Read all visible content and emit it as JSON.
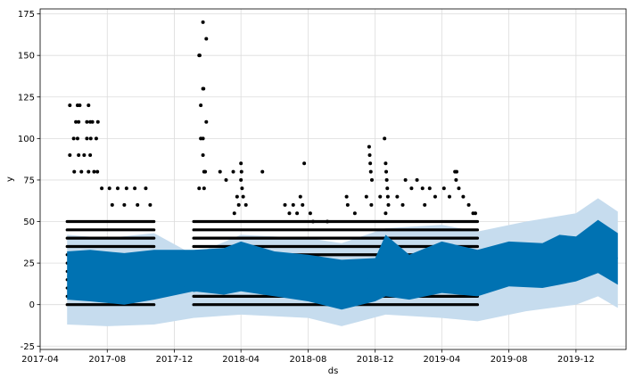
{
  "chart_data": {
    "type": "scatter",
    "title": "",
    "xlabel": "ds",
    "ylabel": "y",
    "grid": true,
    "legend": "none",
    "x_domain": [
      "2017-04-01",
      "2020-03-01"
    ],
    "ylim": [
      -27,
      178
    ],
    "x_ticks": [
      {
        "date": "2017-04-01",
        "label": "2017-04"
      },
      {
        "date": "2017-08-01",
        "label": "2017-08"
      },
      {
        "date": "2017-12-01",
        "label": "2017-12"
      },
      {
        "date": "2018-04-01",
        "label": "2018-04"
      },
      {
        "date": "2018-08-01",
        "label": "2018-08"
      },
      {
        "date": "2018-12-01",
        "label": "2018-12"
      },
      {
        "date": "2019-04-01",
        "label": "2019-04"
      },
      {
        "date": "2019-08-01",
        "label": "2019-08"
      },
      {
        "date": "2019-12-01",
        "label": "2019-12"
      }
    ],
    "y_ticks": [
      -25,
      0,
      25,
      50,
      75,
      100,
      125,
      150,
      175
    ],
    "observed_ranges": [
      {
        "start": "2017-05-20",
        "end": "2017-10-25"
      },
      {
        "start": "2018-01-05",
        "end": "2019-06-05"
      }
    ],
    "observed_levels": [
      0,
      5,
      10,
      15,
      20,
      25,
      30,
      35,
      40,
      45,
      50
    ],
    "sparse_points": [
      {
        "x": "2017-05-25",
        "y": 120
      },
      {
        "x": "2017-06-08",
        "y": 120
      },
      {
        "x": "2017-06-12",
        "y": 120
      },
      {
        "x": "2017-06-28",
        "y": 120
      },
      {
        "x": "2017-06-05",
        "y": 110
      },
      {
        "x": "2017-06-10",
        "y": 110
      },
      {
        "x": "2017-06-25",
        "y": 110
      },
      {
        "x": "2017-07-01",
        "y": 110
      },
      {
        "x": "2017-07-05",
        "y": 110
      },
      {
        "x": "2017-07-15",
        "y": 110
      },
      {
        "x": "2017-06-01",
        "y": 100
      },
      {
        "x": "2017-06-08",
        "y": 100
      },
      {
        "x": "2017-06-25",
        "y": 100
      },
      {
        "x": "2017-07-02",
        "y": 100
      },
      {
        "x": "2017-07-12",
        "y": 100
      },
      {
        "x": "2017-05-25",
        "y": 90
      },
      {
        "x": "2017-06-10",
        "y": 90
      },
      {
        "x": "2017-06-20",
        "y": 90
      },
      {
        "x": "2017-07-01",
        "y": 90
      },
      {
        "x": "2017-06-02",
        "y": 80
      },
      {
        "x": "2017-06-15",
        "y": 80
      },
      {
        "x": "2017-06-28",
        "y": 80
      },
      {
        "x": "2017-07-08",
        "y": 80
      },
      {
        "x": "2017-07-14",
        "y": 80
      },
      {
        "x": "2017-07-22",
        "y": 70
      },
      {
        "x": "2017-08-05",
        "y": 70
      },
      {
        "x": "2017-08-20",
        "y": 70
      },
      {
        "x": "2017-09-05",
        "y": 70
      },
      {
        "x": "2017-09-20",
        "y": 70
      },
      {
        "x": "2017-10-10",
        "y": 70
      },
      {
        "x": "2017-08-10",
        "y": 60
      },
      {
        "x": "2017-09-01",
        "y": 60
      },
      {
        "x": "2017-09-25",
        "y": 60
      },
      {
        "x": "2017-10-18",
        "y": 60
      },
      {
        "x": "2018-01-22",
        "y": 170
      },
      {
        "x": "2018-01-28",
        "y": 160
      },
      {
        "x": "2018-01-15",
        "y": 150
      },
      {
        "x": "2018-01-16",
        "y": 150
      },
      {
        "x": "2018-01-22",
        "y": 130
      },
      {
        "x": "2018-01-23",
        "y": 130
      },
      {
        "x": "2018-01-18",
        "y": 120
      },
      {
        "x": "2018-01-28",
        "y": 110
      },
      {
        "x": "2018-01-18",
        "y": 100
      },
      {
        "x": "2018-01-22",
        "y": 100
      },
      {
        "x": "2018-01-22",
        "y": 90
      },
      {
        "x": "2018-01-24",
        "y": 80
      },
      {
        "x": "2018-01-26",
        "y": 80
      },
      {
        "x": "2018-01-15",
        "y": 70
      },
      {
        "x": "2018-01-24",
        "y": 70
      },
      {
        "x": "2018-02-22",
        "y": 80
      },
      {
        "x": "2018-03-05",
        "y": 75
      },
      {
        "x": "2018-03-18",
        "y": 80
      },
      {
        "x": "2018-04-01",
        "y": 85
      },
      {
        "x": "2018-04-02",
        "y": 80
      },
      {
        "x": "2018-04-01",
        "y": 75
      },
      {
        "x": "2018-04-03",
        "y": 70
      },
      {
        "x": "2018-03-25",
        "y": 65
      },
      {
        "x": "2018-04-05",
        "y": 65
      },
      {
        "x": "2018-03-28",
        "y": 60
      },
      {
        "x": "2018-04-10",
        "y": 60
      },
      {
        "x": "2018-03-20",
        "y": 55
      },
      {
        "x": "2018-05-10",
        "y": 80
      },
      {
        "x": "2018-07-25",
        "y": 85
      },
      {
        "x": "2018-07-18",
        "y": 65
      },
      {
        "x": "2018-07-22",
        "y": 60
      },
      {
        "x": "2018-07-05",
        "y": 60
      },
      {
        "x": "2018-06-20",
        "y": 60
      },
      {
        "x": "2018-06-28",
        "y": 55
      },
      {
        "x": "2018-07-12",
        "y": 55
      },
      {
        "x": "2018-08-05",
        "y": 55
      },
      {
        "x": "2018-08-10",
        "y": 50
      },
      {
        "x": "2018-09-05",
        "y": 50
      },
      {
        "x": "2018-10-10",
        "y": 65
      },
      {
        "x": "2018-10-12",
        "y": 60
      },
      {
        "x": "2018-10-25",
        "y": 55
      },
      {
        "x": "2018-11-20",
        "y": 95
      },
      {
        "x": "2018-11-21",
        "y": 90
      },
      {
        "x": "2018-11-22",
        "y": 85
      },
      {
        "x": "2018-11-23",
        "y": 80
      },
      {
        "x": "2018-11-25",
        "y": 75
      },
      {
        "x": "2018-11-15",
        "y": 65
      },
      {
        "x": "2018-11-24",
        "y": 60
      },
      {
        "x": "2018-12-10",
        "y": 65
      },
      {
        "x": "2018-12-18",
        "y": 100
      },
      {
        "x": "2018-12-20",
        "y": 85
      },
      {
        "x": "2018-12-21",
        "y": 80
      },
      {
        "x": "2018-12-22",
        "y": 75
      },
      {
        "x": "2018-12-23",
        "y": 70
      },
      {
        "x": "2018-12-24",
        "y": 65
      },
      {
        "x": "2018-12-25",
        "y": 60
      },
      {
        "x": "2018-12-20",
        "y": 55
      },
      {
        "x": "2019-01-10",
        "y": 65
      },
      {
        "x": "2019-01-25",
        "y": 75
      },
      {
        "x": "2019-02-05",
        "y": 70
      },
      {
        "x": "2019-02-15",
        "y": 75
      },
      {
        "x": "2019-02-25",
        "y": 70
      },
      {
        "x": "2019-03-10",
        "y": 70
      },
      {
        "x": "2019-03-20",
        "y": 65
      },
      {
        "x": "2019-04-05",
        "y": 70
      },
      {
        "x": "2019-04-15",
        "y": 65
      },
      {
        "x": "2019-04-25",
        "y": 80
      },
      {
        "x": "2019-04-28",
        "y": 80
      },
      {
        "x": "2019-04-27",
        "y": 75
      },
      {
        "x": "2019-05-02",
        "y": 70
      },
      {
        "x": "2019-05-10",
        "y": 65
      },
      {
        "x": "2019-05-20",
        "y": 60
      },
      {
        "x": "2019-05-28",
        "y": 55
      },
      {
        "x": "2019-06-01",
        "y": 55
      },
      {
        "x": "2019-01-20",
        "y": 60
      },
      {
        "x": "2019-03-01",
        "y": 60
      }
    ],
    "forecast_series": {
      "name": "",
      "trend": [
        {
          "x": "2017-05-20",
          "y": 17
        },
        {
          "x": "2017-10-25",
          "y": 18
        },
        {
          "x": "2018-01-05",
          "y": 8
        },
        {
          "x": "2018-07-01",
          "y": 16
        },
        {
          "x": "2018-10-15",
          "y": 13
        },
        {
          "x": "2019-01-01",
          "y": 20
        },
        {
          "x": "2019-06-05",
          "y": 22
        },
        {
          "x": "2019-10-01",
          "y": 24
        },
        {
          "x": "2020-02-15",
          "y": 28
        }
      ],
      "envelope": [
        {
          "x": "2017-05-20",
          "y": [
            3,
            32
          ]
        },
        {
          "x": "2017-07-01",
          "y": [
            2,
            33
          ]
        },
        {
          "x": "2017-09-01",
          "y": [
            0,
            31
          ]
        },
        {
          "x": "2017-10-25",
          "y": [
            3,
            33
          ]
        },
        {
          "x": "2018-01-05",
          "y": [
            8,
            33
          ]
        },
        {
          "x": "2018-03-01",
          "y": [
            6,
            34
          ]
        },
        {
          "x": "2018-04-01",
          "y": [
            8,
            38
          ]
        },
        {
          "x": "2018-06-01",
          "y": [
            5,
            32
          ]
        },
        {
          "x": "2018-08-01",
          "y": [
            2,
            30
          ]
        },
        {
          "x": "2018-10-01",
          "y": [
            -3,
            27
          ]
        },
        {
          "x": "2018-12-01",
          "y": [
            2,
            28
          ]
        },
        {
          "x": "2018-12-20",
          "y": [
            5,
            42
          ]
        },
        {
          "x": "2019-02-01",
          "y": [
            3,
            30
          ]
        },
        {
          "x": "2019-04-01",
          "y": [
            7,
            38
          ]
        },
        {
          "x": "2019-06-05",
          "y": [
            5,
            33
          ]
        },
        {
          "x": "2019-08-01",
          "y": [
            11,
            38
          ]
        },
        {
          "x": "2019-10-01",
          "y": [
            10,
            37
          ]
        },
        {
          "x": "2019-11-01",
          "y": [
            12,
            42
          ]
        },
        {
          "x": "2019-12-01",
          "y": [
            14,
            41
          ]
        },
        {
          "x": "2020-01-10",
          "y": [
            19,
            51
          ]
        },
        {
          "x": "2020-02-15",
          "y": [
            12,
            43
          ]
        }
      ],
      "uncertainty": [
        {
          "x": "2017-05-20",
          "y": [
            -12,
            42
          ]
        },
        {
          "x": "2017-08-01",
          "y": [
            -13,
            40
          ]
        },
        {
          "x": "2017-10-25",
          "y": [
            -12,
            43
          ]
        },
        {
          "x": "2018-01-05",
          "y": [
            -8,
            30
          ]
        },
        {
          "x": "2018-04-01",
          "y": [
            -6,
            42
          ]
        },
        {
          "x": "2018-08-01",
          "y": [
            -8,
            40
          ]
        },
        {
          "x": "2018-10-01",
          "y": [
            -13,
            37
          ]
        },
        {
          "x": "2018-12-20",
          "y": [
            -6,
            46
          ]
        },
        {
          "x": "2019-04-01",
          "y": [
            -8,
            48
          ]
        },
        {
          "x": "2019-06-05",
          "y": [
            -10,
            44
          ]
        },
        {
          "x": "2019-09-01",
          "y": [
            -4,
            50
          ]
        },
        {
          "x": "2019-12-01",
          "y": [
            0,
            55
          ]
        },
        {
          "x": "2020-01-10",
          "y": [
            5,
            64
          ]
        },
        {
          "x": "2020-02-15",
          "y": [
            -2,
            56
          ]
        }
      ]
    },
    "colors": {
      "points": "#000000",
      "forecast_line": "#0072B2",
      "uncertainty": "#c6dcee",
      "grid": "#dcdcdc"
    }
  }
}
